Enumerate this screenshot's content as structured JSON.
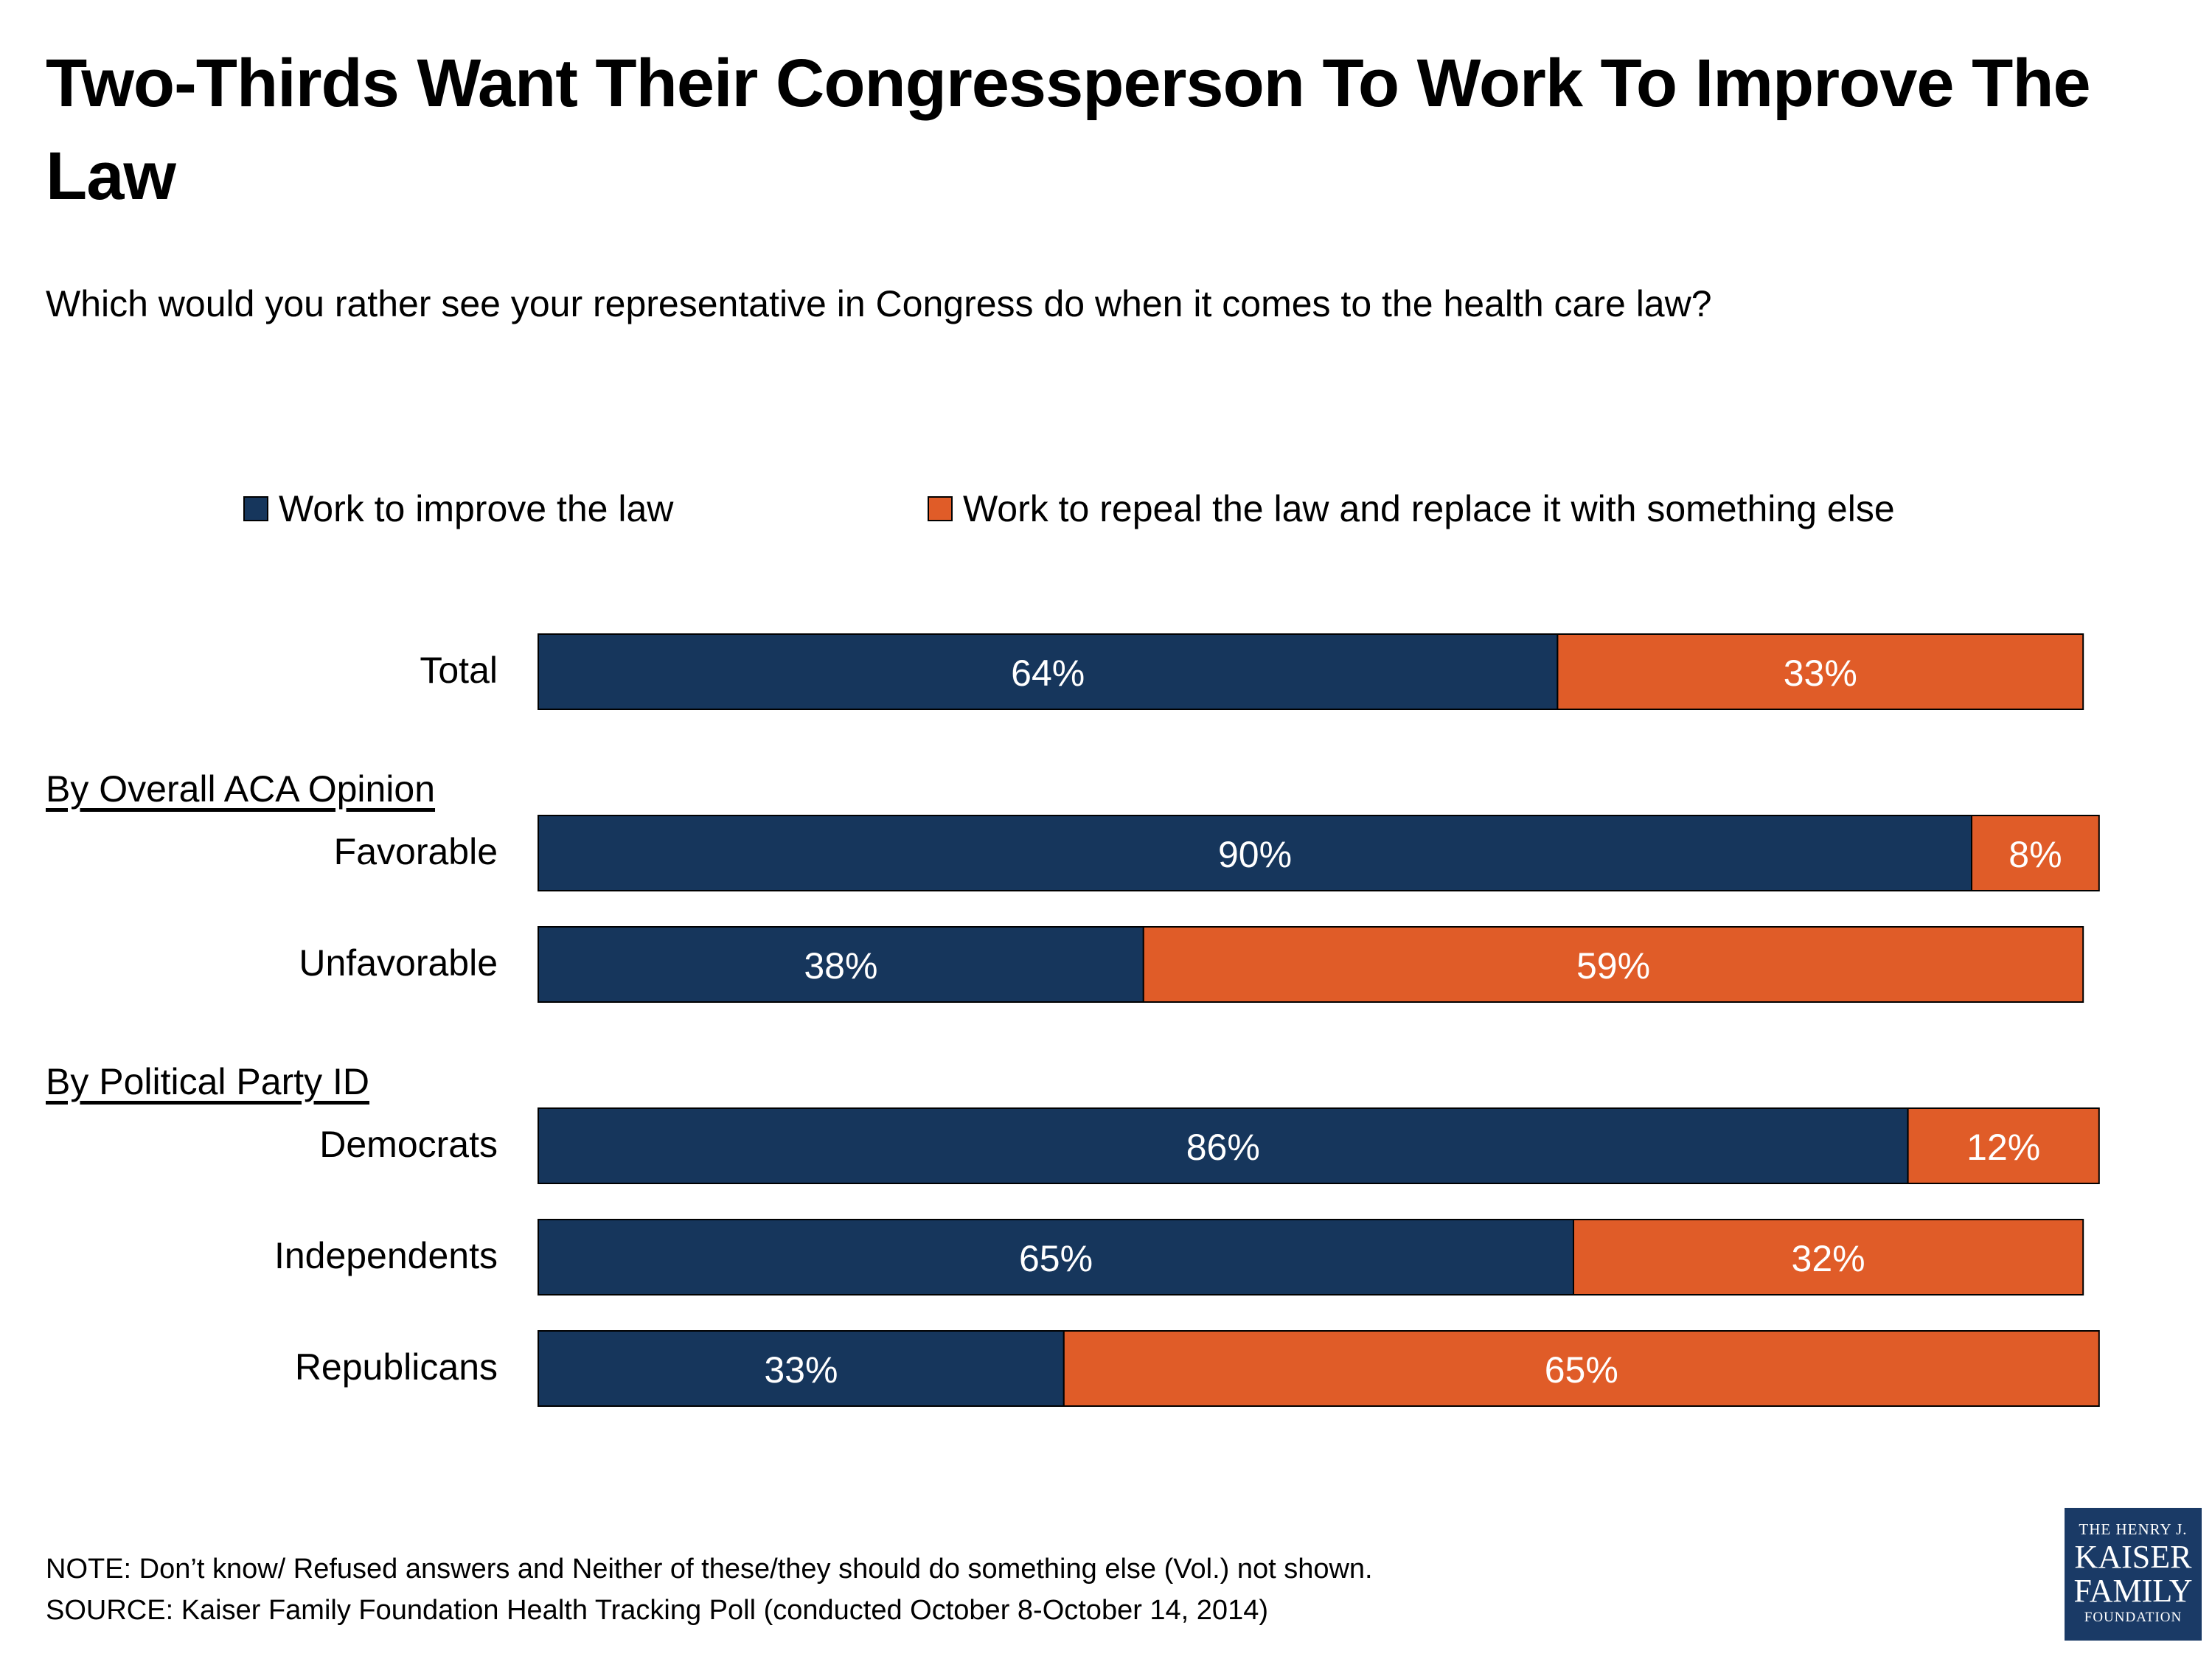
{
  "chart_data": {
    "type": "bar",
    "orientation": "horizontal",
    "stacked": true,
    "title": "Two-Thirds Want Their Congressperson To Work To Improve The Law",
    "subtitle": "Which would you rather see your representative in Congress do when it comes to the health care law?",
    "xlim": [
      0,
      100
    ],
    "colors": {
      "improve": "#16365c",
      "repeal": "#e05c28",
      "bar_border": "#000000",
      "value_label": "#ffffff"
    },
    "series": [
      {
        "name": "Work to improve the law",
        "key": "improve"
      },
      {
        "name": "Work to repeal the law and replace it with something else",
        "key": "repeal"
      }
    ],
    "groups": [
      {
        "heading": "",
        "rows": [
          {
            "label": "Total",
            "values": [
              64,
              33
            ],
            "value_labels": [
              "64%",
              "33%"
            ]
          }
        ]
      },
      {
        "heading": "By Overall ACA Opinion",
        "rows": [
          {
            "label": "Favorable",
            "values": [
              90,
              8
            ],
            "value_labels": [
              "90%",
              "8%"
            ]
          },
          {
            "label": "Unfavorable",
            "values": [
              38,
              59
            ],
            "value_labels": [
              "38%",
              "59%"
            ]
          }
        ]
      },
      {
        "heading": "By Political Party ID",
        "rows": [
          {
            "label": "Democrats",
            "values": [
              86,
              12
            ],
            "value_labels": [
              "86%",
              "12%"
            ]
          },
          {
            "label": "Independents",
            "values": [
              65,
              32
            ],
            "value_labels": [
              "65%",
              "32%"
            ]
          },
          {
            "label": "Republicans",
            "values": [
              33,
              65
            ],
            "value_labels": [
              "33%",
              "65%"
            ]
          }
        ]
      }
    ]
  },
  "footer": {
    "note": "NOTE:  Don’t know/ Refused answers and Neither of these/they should do something else (Vol.) not shown.",
    "source": "SOURCE: Kaiser Family Foundation Health Tracking Poll (conducted October 8-October 14, 2014)"
  },
  "logo": {
    "line1": "THE HENRY J.",
    "line2": "KAISER",
    "line3": "FAMILY",
    "line4": "FOUNDATION"
  }
}
